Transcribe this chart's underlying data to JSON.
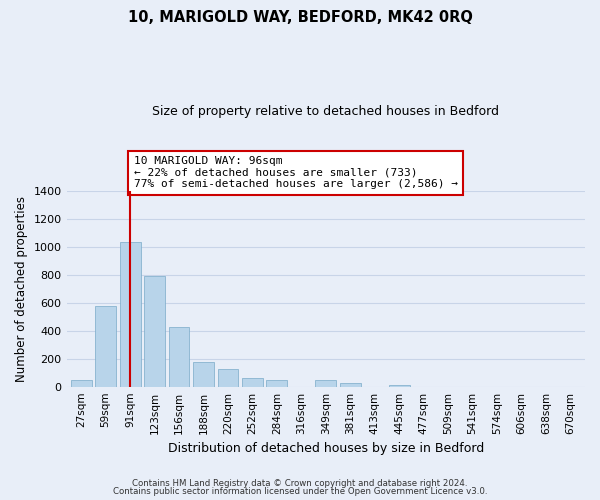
{
  "title": "10, MARIGOLD WAY, BEDFORD, MK42 0RQ",
  "subtitle": "Size of property relative to detached houses in Bedford",
  "xlabel": "Distribution of detached houses by size in Bedford",
  "ylabel": "Number of detached properties",
  "bar_labels": [
    "27sqm",
    "59sqm",
    "91sqm",
    "123sqm",
    "156sqm",
    "188sqm",
    "220sqm",
    "252sqm",
    "284sqm",
    "316sqm",
    "349sqm",
    "381sqm",
    "413sqm",
    "445sqm",
    "477sqm",
    "509sqm",
    "541sqm",
    "574sqm",
    "606sqm",
    "638sqm",
    "670sqm"
  ],
  "bar_values": [
    50,
    575,
    1040,
    790,
    430,
    180,
    125,
    65,
    50,
    0,
    50,
    25,
    0,
    10,
    0,
    0,
    0,
    0,
    0,
    0,
    0
  ],
  "bar_color": "#b8d4ea",
  "bar_edge_color": "#7aaac8",
  "vline_x": 2,
  "vline_color": "#cc0000",
  "annotation_text": "10 MARIGOLD WAY: 96sqm\n← 22% of detached houses are smaller (733)\n77% of semi-detached houses are larger (2,586) →",
  "ylim": [
    0,
    1400
  ],
  "yticks": [
    0,
    200,
    400,
    600,
    800,
    1000,
    1200,
    1400
  ],
  "footer_line1": "Contains HM Land Registry data © Crown copyright and database right 2024.",
  "footer_line2": "Contains public sector information licensed under the Open Government Licence v3.0.",
  "bg_color": "#e8eef8",
  "plot_bg_color": "#e8eef8",
  "grid_color": "#c8d4e8"
}
